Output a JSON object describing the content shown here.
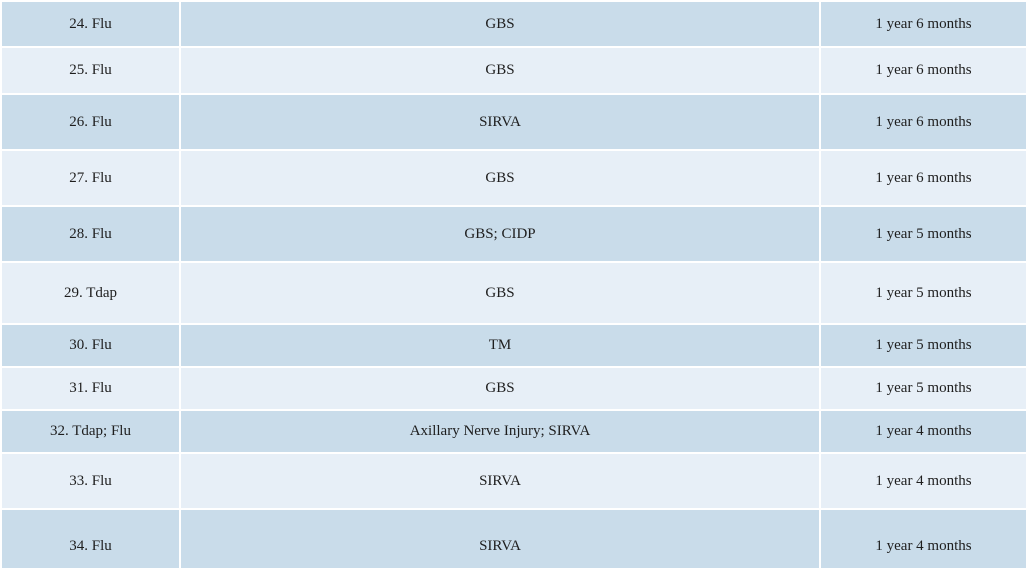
{
  "colors": {
    "row_dark": "#c9dcea",
    "row_light": "#e7eff7"
  },
  "rows": [
    {
      "vaccine": "24. Flu",
      "injury": "GBS",
      "duration": "1 year 6 months"
    },
    {
      "vaccine": "25. Flu",
      "injury": "GBS",
      "duration": "1 year 6 months"
    },
    {
      "vaccine": "26. Flu",
      "injury": "SIRVA",
      "duration": "1 year 6 months"
    },
    {
      "vaccine": "27. Flu",
      "injury": "GBS",
      "duration": "1 year 6 months"
    },
    {
      "vaccine": "28. Flu",
      "injury": "GBS; CIDP",
      "duration": "1 year 5 months"
    },
    {
      "vaccine": "29. Tdap",
      "injury": "GBS",
      "duration": "1 year 5 months"
    },
    {
      "vaccine": "30. Flu",
      "injury": "TM",
      "duration": "1 year 5 months"
    },
    {
      "vaccine": "31. Flu",
      "injury": "GBS",
      "duration": "1 year 5 months"
    },
    {
      "vaccine": "32. Tdap; Flu",
      "injury": "Axillary Nerve Injury; SIRVA",
      "duration": "1 year 4 months"
    },
    {
      "vaccine": "33. Flu",
      "injury": "SIRVA",
      "duration": "1 year 4 months"
    },
    {
      "vaccine": "34. Flu",
      "injury": "SIRVA",
      "duration": "1 year 4 months"
    }
  ]
}
